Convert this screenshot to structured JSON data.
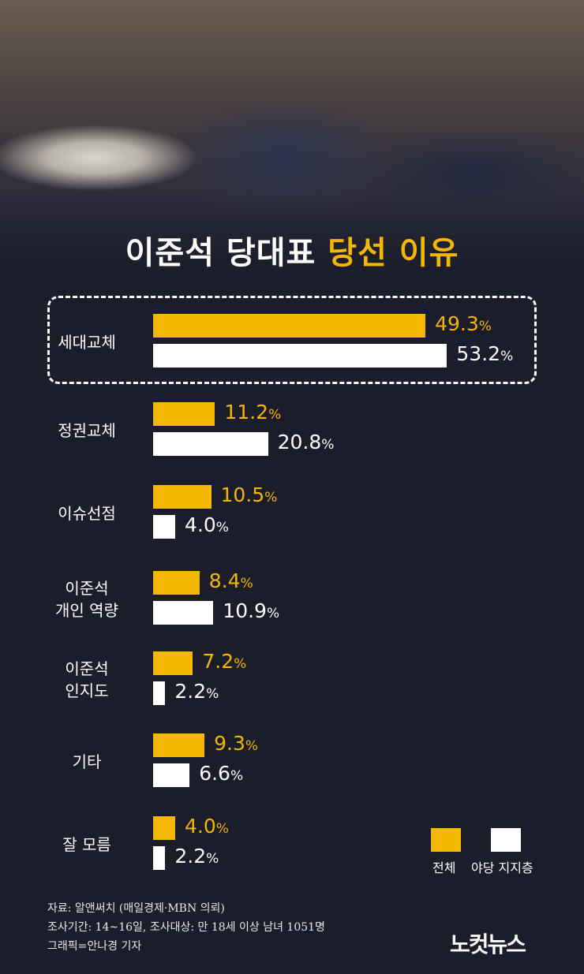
{
  "title": {
    "white": "이준석 당대표",
    "yellow": "당선 이유"
  },
  "colors": {
    "overall": "#f3b700",
    "opposition": "#ffffff",
    "background": "#1b1d2b"
  },
  "chart_data": {
    "type": "bar",
    "orientation": "horizontal",
    "title": "이준석 당대표 당선 이유",
    "unit": "%",
    "categories": [
      "세대교체",
      "정권교체",
      "이슈선점",
      "이준석\n개인 역량",
      "이준석\n인지도",
      "기타",
      "잘 모름"
    ],
    "series": [
      {
        "name": "전체",
        "color": "#f3b700",
        "values": [
          49.3,
          11.2,
          10.5,
          8.4,
          7.2,
          9.3,
          4.0
        ]
      },
      {
        "name": "야당 지지층",
        "color": "#ffffff",
        "values": [
          53.2,
          20.8,
          4.0,
          10.9,
          2.2,
          6.6,
          2.2
        ]
      }
    ],
    "highlighted_category": "세대교체",
    "legend": "bottom-right",
    "grid": false
  },
  "footer": {
    "source": "자료: 알앤써치 (매일경제·MBN 의뢰)",
    "period": "조사기간: 14~16일, 조사대상: 만 18세 이상 남녀 1051명",
    "credit": "그래픽=안나경 기자"
  },
  "logo": "노컷뉴스"
}
